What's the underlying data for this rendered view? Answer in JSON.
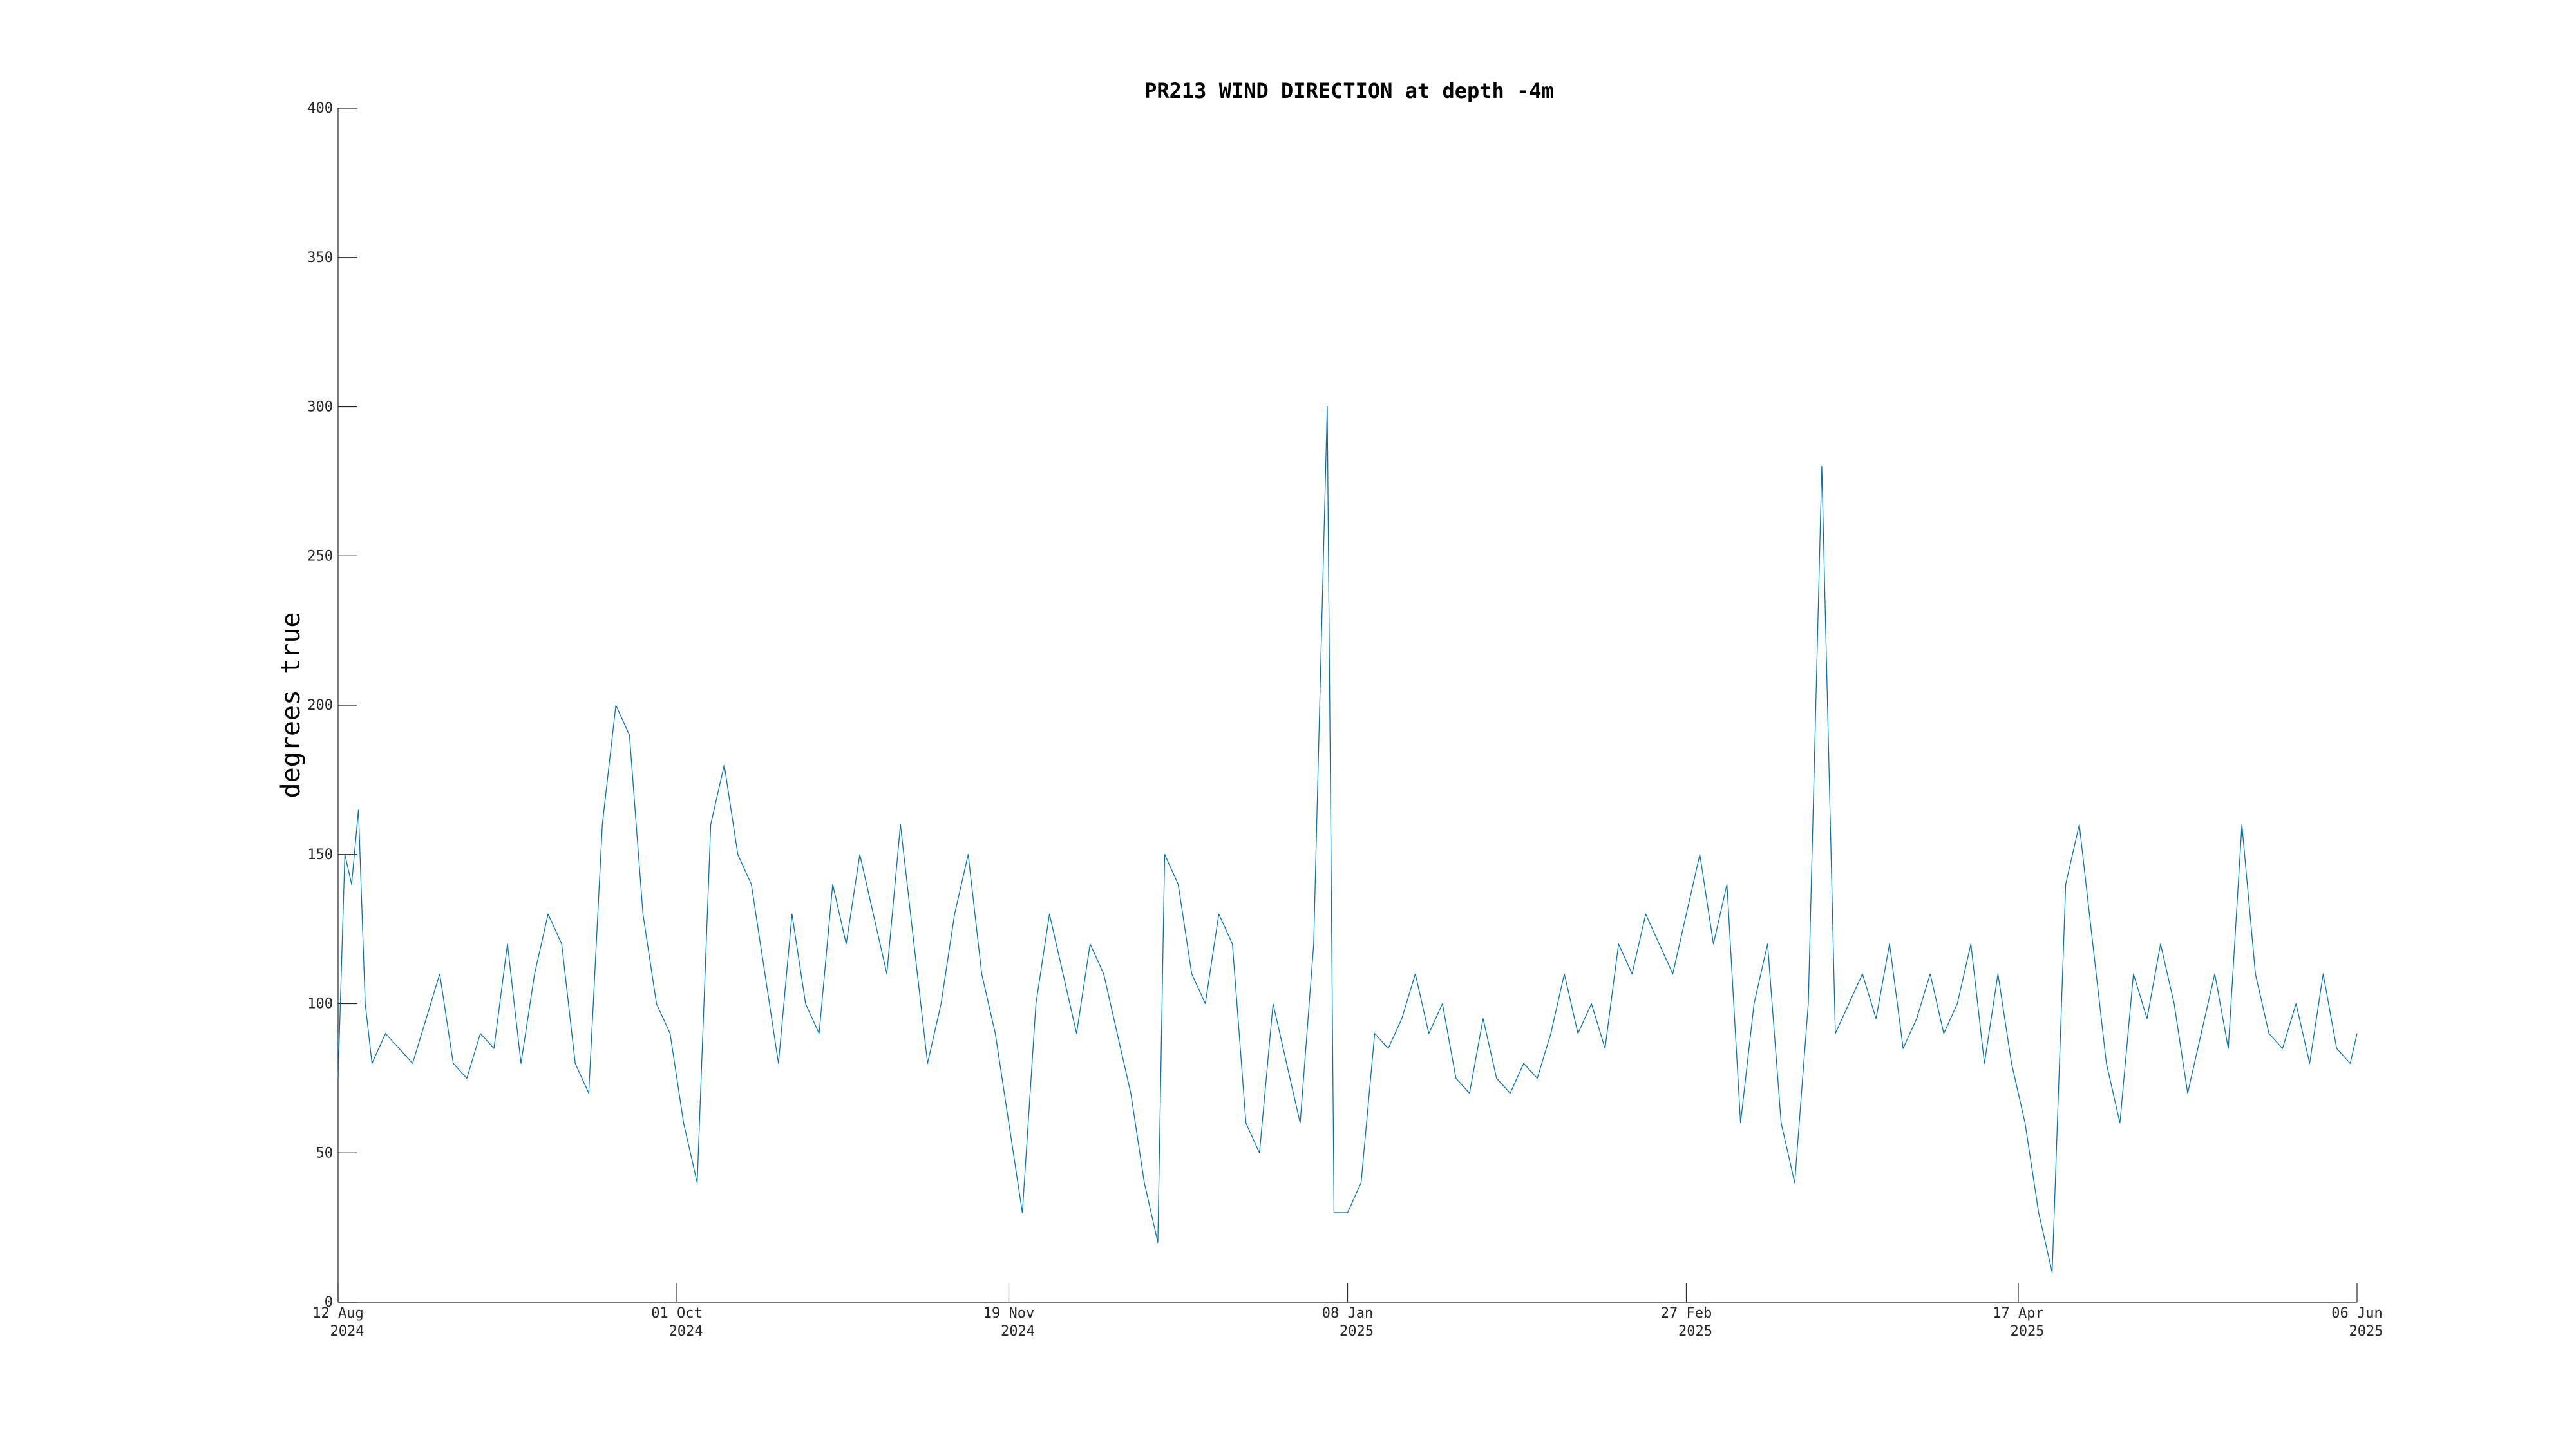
{
  "colors": {
    "series": "#0072BD",
    "axis": "#262626",
    "background": "#ffffff"
  },
  "chart_data": {
    "type": "line",
    "title": "PR213 WIND DIRECTION at depth -4m",
    "xlabel": "",
    "ylabel": "degrees true",
    "ylim": [
      0,
      400
    ],
    "yticks": [
      0,
      50,
      100,
      150,
      200,
      250,
      300,
      350,
      400
    ],
    "xlim": [
      "2024-08-12",
      "2025-06-06"
    ],
    "xticks": [
      {
        "date": "2024-08-12",
        "day": "12 Aug",
        "year": "2024"
      },
      {
        "date": "2024-10-01",
        "day": "01 Oct",
        "year": "2024"
      },
      {
        "date": "2024-11-19",
        "day": "19 Nov",
        "year": "2024"
      },
      {
        "date": "2025-01-08",
        "day": "08 Jan",
        "year": "2025"
      },
      {
        "date": "2025-02-27",
        "day": "27 Feb",
        "year": "2025"
      },
      {
        "date": "2025-04-17",
        "day": "17 Apr",
        "year": "2025"
      },
      {
        "date": "2025-06-06",
        "day": "06 Jun",
        "year": "2025"
      }
    ],
    "grid": false,
    "series": [
      {
        "points": [
          [
            "2024-08-12",
            75
          ],
          [
            "2024-08-13",
            150
          ],
          [
            "2024-08-14",
            140
          ],
          [
            "2024-08-15",
            165
          ],
          [
            "2024-08-16",
            100
          ],
          [
            "2024-08-17",
            80
          ],
          [
            "2024-08-19",
            90
          ],
          [
            "2024-08-21",
            85
          ],
          [
            "2024-08-23",
            80
          ],
          [
            "2024-08-25",
            95
          ],
          [
            "2024-08-27",
            110
          ],
          [
            "2024-08-29",
            80
          ],
          [
            "2024-08-31",
            75
          ],
          [
            "2024-09-02",
            90
          ],
          [
            "2024-09-04",
            85
          ],
          [
            "2024-09-06",
            120
          ],
          [
            "2024-09-08",
            80
          ],
          [
            "2024-09-10",
            110
          ],
          [
            "2024-09-12",
            130
          ],
          [
            "2024-09-14",
            120
          ],
          [
            "2024-09-16",
            80
          ],
          [
            "2024-09-18",
            70
          ],
          [
            "2024-09-20",
            160
          ],
          [
            "2024-09-22",
            200
          ],
          [
            "2024-09-24",
            190
          ],
          [
            "2024-09-26",
            130
          ],
          [
            "2024-09-28",
            100
          ],
          [
            "2024-09-30",
            90
          ],
          [
            "2024-10-02",
            60
          ],
          [
            "2024-10-04",
            40
          ],
          [
            "2024-10-06",
            160
          ],
          [
            "2024-10-08",
            180
          ],
          [
            "2024-10-10",
            150
          ],
          [
            "2024-10-12",
            140
          ],
          [
            "2024-10-14",
            110
          ],
          [
            "2024-10-16",
            80
          ],
          [
            "2024-10-18",
            130
          ],
          [
            "2024-10-20",
            100
          ],
          [
            "2024-10-22",
            90
          ],
          [
            "2024-10-24",
            140
          ],
          [
            "2024-10-26",
            120
          ],
          [
            "2024-10-28",
            150
          ],
          [
            "2024-10-30",
            130
          ],
          [
            "2024-11-01",
            110
          ],
          [
            "2024-11-03",
            160
          ],
          [
            "2024-11-05",
            120
          ],
          [
            "2024-11-07",
            80
          ],
          [
            "2024-11-09",
            100
          ],
          [
            "2024-11-11",
            130
          ],
          [
            "2024-11-13",
            150
          ],
          [
            "2024-11-15",
            110
          ],
          [
            "2024-11-17",
            90
          ],
          [
            "2024-11-19",
            60
          ],
          [
            "2024-11-21",
            30
          ],
          [
            "2024-11-23",
            100
          ],
          [
            "2024-11-25",
            130
          ],
          [
            "2024-11-27",
            110
          ],
          [
            "2024-11-29",
            90
          ],
          [
            "2024-12-01",
            120
          ],
          [
            "2024-12-03",
            110
          ],
          [
            "2024-12-05",
            90
          ],
          [
            "2024-12-07",
            70
          ],
          [
            "2024-12-09",
            40
          ],
          [
            "2024-12-11",
            20
          ],
          [
            "2024-12-12",
            150
          ],
          [
            "2024-12-14",
            140
          ],
          [
            "2024-12-16",
            110
          ],
          [
            "2024-12-18",
            100
          ],
          [
            "2024-12-20",
            130
          ],
          [
            "2024-12-22",
            120
          ],
          [
            "2024-12-24",
            60
          ],
          [
            "2024-12-26",
            50
          ],
          [
            "2024-12-28",
            100
          ],
          [
            "2024-12-30",
            80
          ],
          [
            "2025-01-01",
            60
          ],
          [
            "2025-01-03",
            120
          ],
          [
            "2025-01-05",
            300
          ],
          [
            "2025-01-06",
            30
          ],
          [
            "2025-01-08",
            30
          ],
          [
            "2025-01-10",
            40
          ],
          [
            "2025-01-12",
            90
          ],
          [
            "2025-01-14",
            85
          ],
          [
            "2025-01-16",
            95
          ],
          [
            "2025-01-18",
            110
          ],
          [
            "2025-01-20",
            90
          ],
          [
            "2025-01-22",
            100
          ],
          [
            "2025-01-24",
            75
          ],
          [
            "2025-01-26",
            70
          ],
          [
            "2025-01-28",
            95
          ],
          [
            "2025-01-30",
            75
          ],
          [
            "2025-02-01",
            70
          ],
          [
            "2025-02-03",
            80
          ],
          [
            "2025-02-05",
            75
          ],
          [
            "2025-02-07",
            90
          ],
          [
            "2025-02-09",
            110
          ],
          [
            "2025-02-11",
            90
          ],
          [
            "2025-02-13",
            100
          ],
          [
            "2025-02-15",
            85
          ],
          [
            "2025-02-17",
            120
          ],
          [
            "2025-02-19",
            110
          ],
          [
            "2025-02-21",
            130
          ],
          [
            "2025-02-23",
            120
          ],
          [
            "2025-02-25",
            110
          ],
          [
            "2025-02-27",
            130
          ],
          [
            "2025-03-01",
            150
          ],
          [
            "2025-03-03",
            120
          ],
          [
            "2025-03-05",
            140
          ],
          [
            "2025-03-07",
            60
          ],
          [
            "2025-03-09",
            100
          ],
          [
            "2025-03-11",
            120
          ],
          [
            "2025-03-13",
            60
          ],
          [
            "2025-03-15",
            40
          ],
          [
            "2025-03-17",
            100
          ],
          [
            "2025-03-19",
            280
          ],
          [
            "2025-03-21",
            90
          ],
          [
            "2025-03-23",
            100
          ],
          [
            "2025-03-25",
            110
          ],
          [
            "2025-03-27",
            95
          ],
          [
            "2025-03-29",
            120
          ],
          [
            "2025-03-31",
            85
          ],
          [
            "2025-04-02",
            95
          ],
          [
            "2025-04-04",
            110
          ],
          [
            "2025-04-06",
            90
          ],
          [
            "2025-04-08",
            100
          ],
          [
            "2025-04-10",
            120
          ],
          [
            "2025-04-12",
            80
          ],
          [
            "2025-04-14",
            110
          ],
          [
            "2025-04-16",
            80
          ],
          [
            "2025-04-18",
            60
          ],
          [
            "2025-04-20",
            30
          ],
          [
            "2025-04-22",
            10
          ],
          [
            "2025-04-24",
            140
          ],
          [
            "2025-04-26",
            160
          ],
          [
            "2025-04-28",
            120
          ],
          [
            "2025-04-30",
            80
          ],
          [
            "2025-05-02",
            60
          ],
          [
            "2025-05-04",
            110
          ],
          [
            "2025-05-06",
            95
          ],
          [
            "2025-05-08",
            120
          ],
          [
            "2025-05-10",
            100
          ],
          [
            "2025-05-12",
            70
          ],
          [
            "2025-05-14",
            90
          ],
          [
            "2025-05-16",
            110
          ],
          [
            "2025-05-18",
            85
          ],
          [
            "2025-05-20",
            160
          ],
          [
            "2025-05-22",
            110
          ],
          [
            "2025-05-24",
            90
          ],
          [
            "2025-05-26",
            85
          ],
          [
            "2025-05-28",
            100
          ],
          [
            "2025-05-30",
            80
          ],
          [
            "2025-06-01",
            110
          ],
          [
            "2025-06-03",
            85
          ],
          [
            "2025-06-05",
            80
          ],
          [
            "2025-06-06",
            90
          ]
        ]
      }
    ]
  }
}
